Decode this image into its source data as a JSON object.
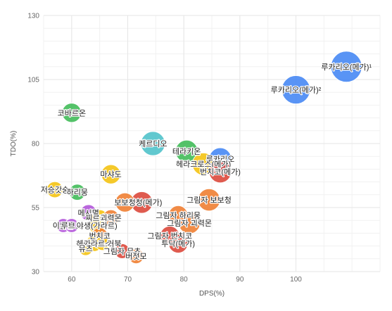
{
  "chart_data": {
    "type": "scatter",
    "xlabel": "DPS(%)",
    "ylabel": "TDO(%)",
    "xlim": [
      55,
      115
    ],
    "ylim": [
      30,
      130
    ],
    "xticks": [
      60,
      70,
      80,
      90,
      100
    ],
    "yticks": [
      30,
      55,
      80,
      105,
      130
    ],
    "grid": true,
    "colors": [
      "#3cba54",
      "#4285f4",
      "#f4c20d",
      "#ef7c2e",
      "#db4437",
      "#b052d8",
      "#4bc0c8"
    ],
    "points": [
      {
        "label": "루카리오(메가)¹",
        "x": 109,
        "y": 110,
        "size": 1.0,
        "color": "#4285f4"
      },
      {
        "label": "루카리오(메가)²",
        "x": 100,
        "y": 101,
        "size": 0.92,
        "color": "#4285f4"
      },
      {
        "label": "코바르온",
        "x": 60,
        "y": 92,
        "size": 0.62,
        "color": "#3cba54"
      },
      {
        "label": "케르디오",
        "x": 74.5,
        "y": 80,
        "size": 0.78,
        "color": "#4bc0c8"
      },
      {
        "label": "테라키온",
        "x": 80.5,
        "y": 77,
        "size": 0.72,
        "color": "#3cba54"
      },
      {
        "label": "루카리오",
        "x": 86.5,
        "y": 74,
        "size": 0.72,
        "color": "#4285f4"
      },
      {
        "label": "헤라크로스(메가)",
        "x": 83.5,
        "y": 72,
        "size": 0.72,
        "color": "#f4c20d"
      },
      {
        "label": "번치코(메가)",
        "x": 86.5,
        "y": 69,
        "size": 0.72,
        "color": "#db4437"
      },
      {
        "label": "마샤도",
        "x": 67,
        "y": 68,
        "size": 0.62,
        "color": "#f4c20d"
      },
      {
        "label": "저승갓숭",
        "x": 57,
        "y": 62,
        "size": 0.52,
        "color": "#f4c20d"
      },
      {
        "label": "하리뭉",
        "x": 61,
        "y": 61,
        "size": 0.52,
        "color": "#3cba54"
      },
      {
        "label": "그림자 보보청",
        "x": 84.5,
        "y": 58,
        "size": 0.72,
        "color": "#ef7c2e"
      },
      {
        "label": "보보청(메가)",
        "x": 72.5,
        "y": 57,
        "size": 0.7,
        "color": "#db4437"
      },
      {
        "label": "보보청",
        "x": 69.5,
        "y": 57,
        "size": 0.62,
        "color": "#ef7c2e"
      },
      {
        "label": "메시멸",
        "x": 63,
        "y": 53,
        "size": 0.52,
        "color": "#b052d8"
      },
      {
        "label": "찌르호크",
        "x": 65,
        "y": 51,
        "size": 0.52,
        "color": "#f4c20d"
      },
      {
        "label": "괴력몬",
        "x": 67,
        "y": 51,
        "size": 0.52,
        "color": "#ef7c2e"
      },
      {
        "label": "그림자 하리뭉",
        "x": 79,
        "y": 52,
        "size": 0.62,
        "color": "#ef7c2e"
      },
      {
        "label": "그림자 괴력몬",
        "x": 81,
        "y": 49,
        "size": 0.7,
        "color": "#ef7c2e"
      },
      {
        "label": "이븐곰",
        "x": 58.5,
        "y": 48,
        "size": 0.45,
        "color": "#b052d8"
      },
      {
        "label": "루브도",
        "x": 60,
        "y": 48,
        "size": 0.45,
        "color": "#b052d8"
      },
      {
        "label": "야생(가라르)",
        "x": 64.5,
        "y": 48,
        "size": 0.52,
        "color": "#f4c20d"
      },
      {
        "label": "번치코",
        "x": 65,
        "y": 44,
        "size": 0.52,
        "color": "#ef7c2e"
      },
      {
        "label": "그림자 번치코",
        "x": 77.5,
        "y": 44,
        "size": 0.62,
        "color": "#db4437"
      },
      {
        "label": "투닥(메가)",
        "x": 79,
        "y": 41,
        "size": 0.62,
        "color": "#db4437"
      },
      {
        "label": "헤라크로스",
        "x": 64,
        "y": 41,
        "size": 0.52,
        "color": "#f4c20d"
      },
      {
        "label": "가라르 거북",
        "x": 65.5,
        "y": 41,
        "size": 0.45,
        "color": "#f4c20d"
      },
      {
        "label": "뮤츠",
        "x": 62.5,
        "y": 39,
        "size": 0.45,
        "color": "#f4c20d"
      },
      {
        "label": "그림자 뮤츠",
        "x": 69,
        "y": 38,
        "size": 0.48,
        "color": "#db4437"
      },
      {
        "label": "버젓모",
        "x": 71.5,
        "y": 36,
        "size": 0.48,
        "color": "#ef7c2e"
      }
    ]
  }
}
